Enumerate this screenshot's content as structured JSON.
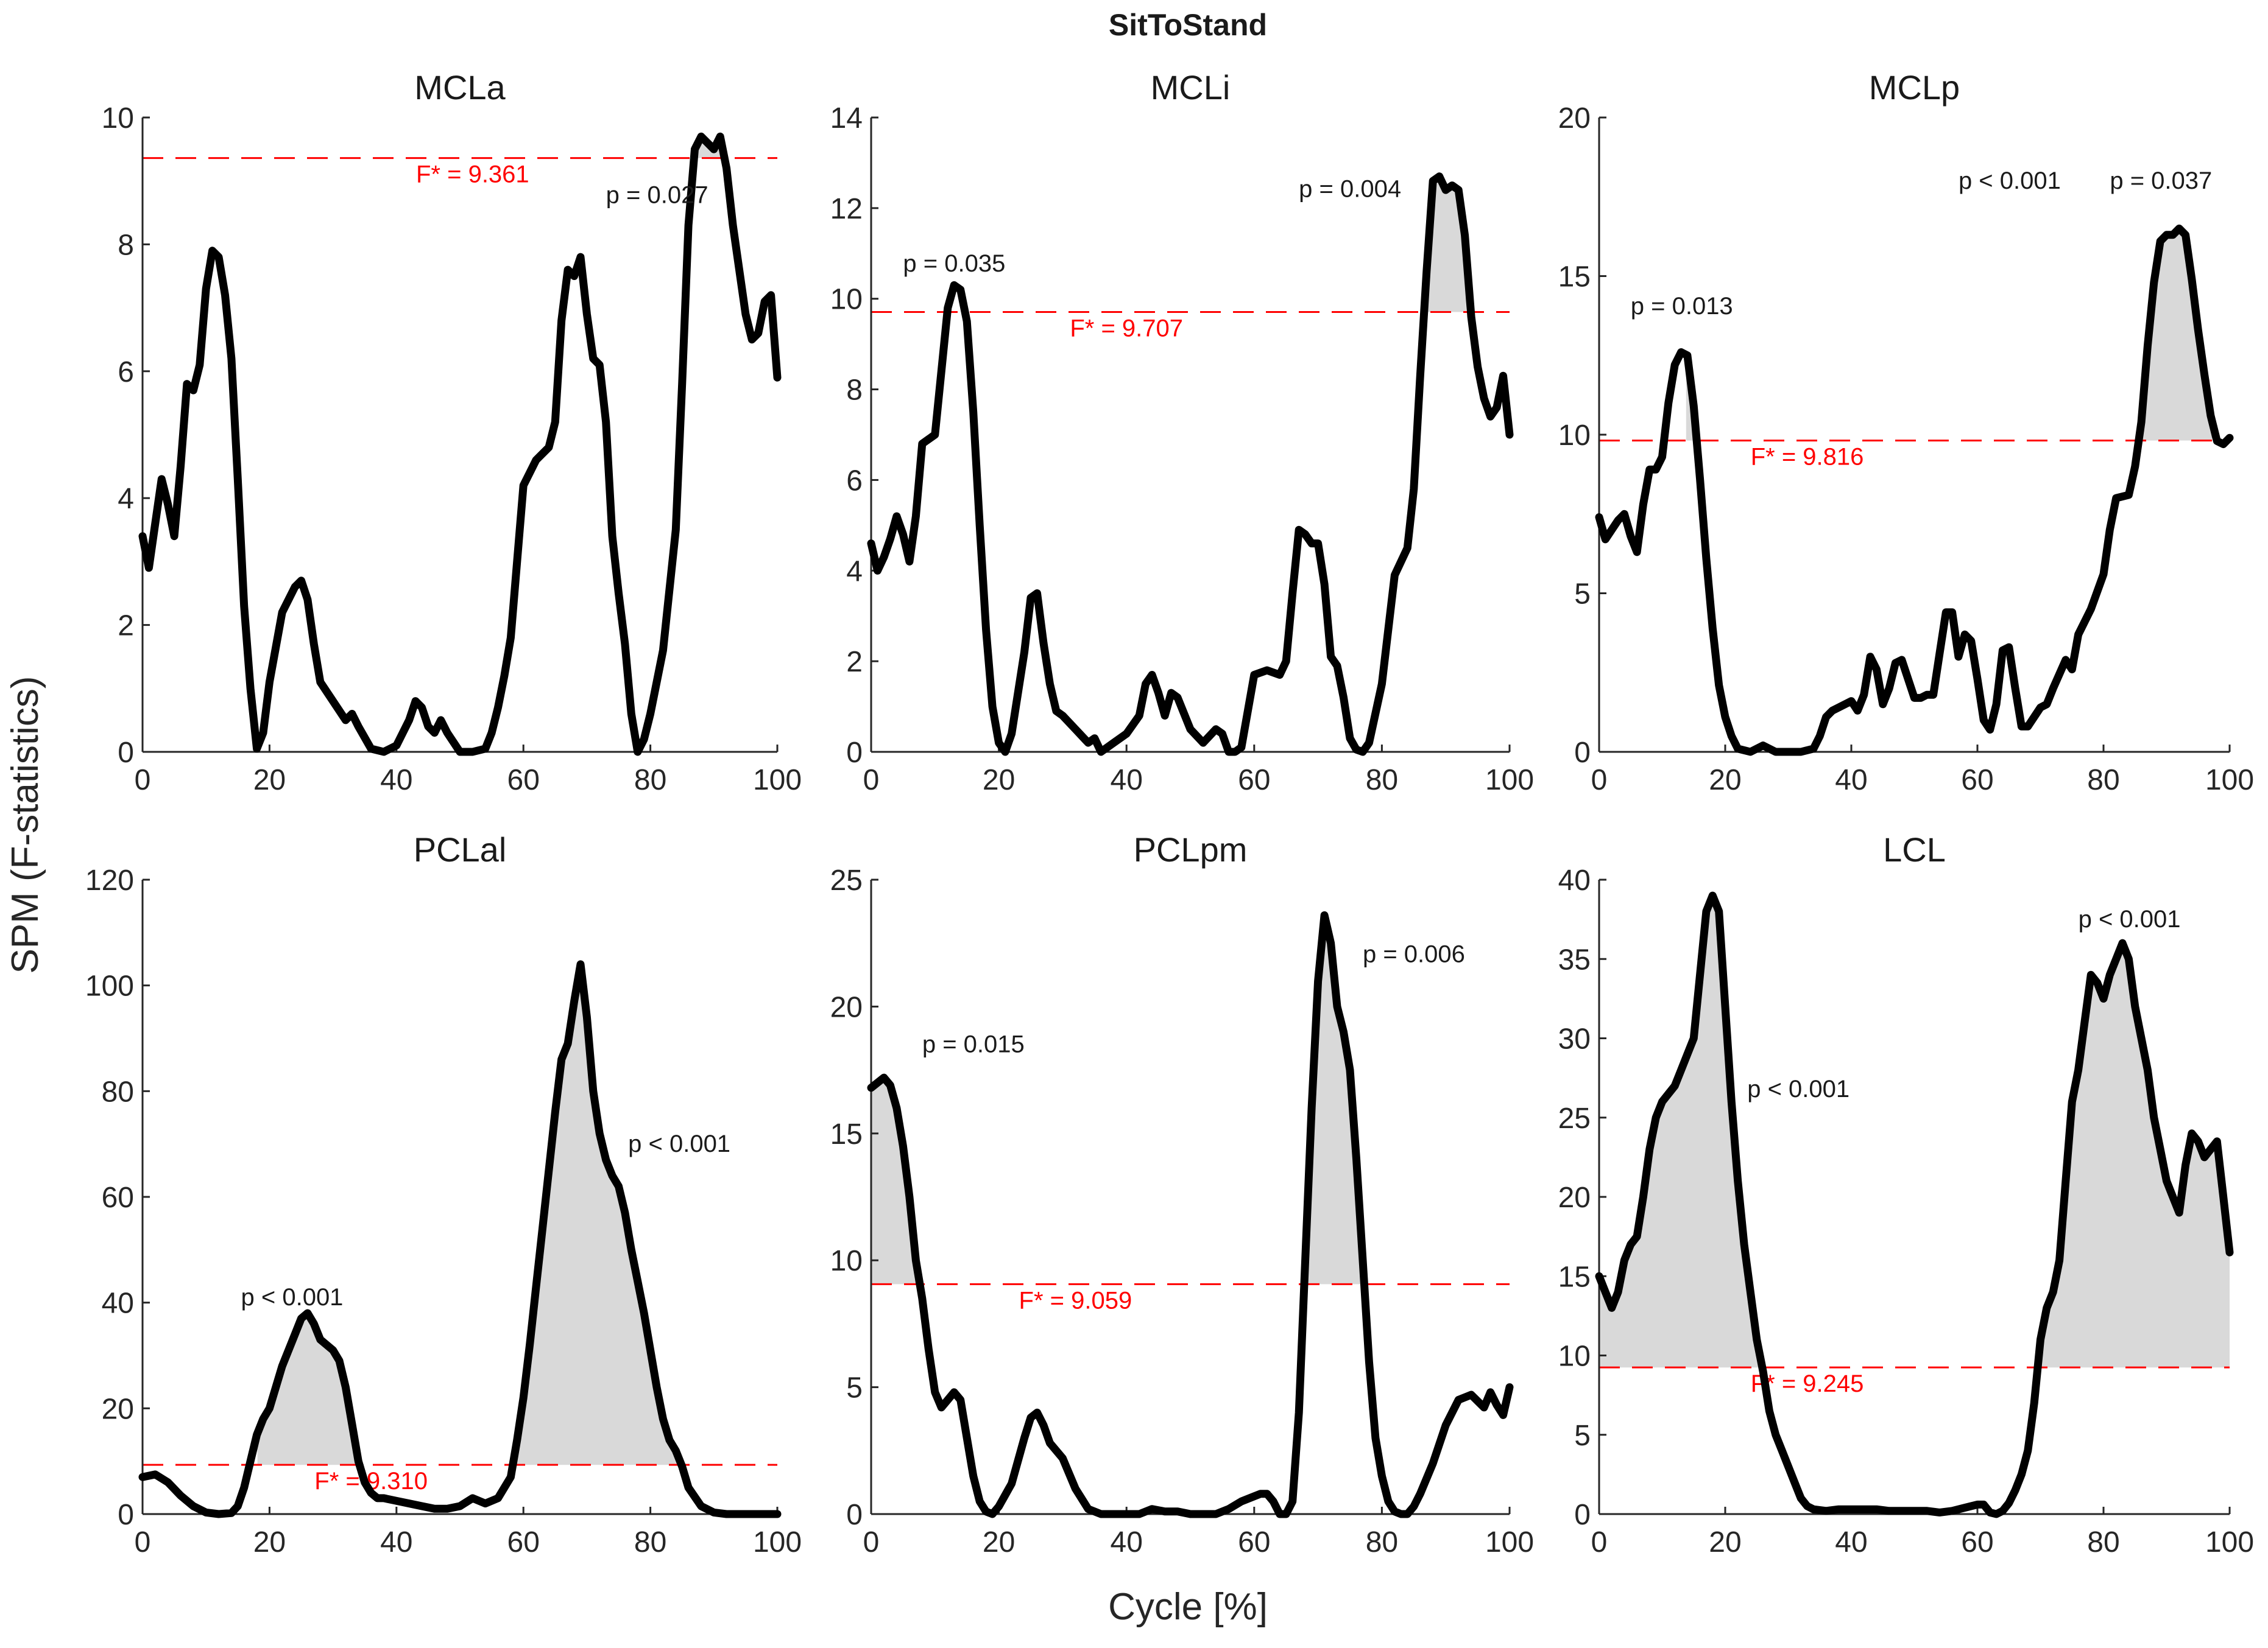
{
  "figure": {
    "title": "SitToStand",
    "ylabel": "SPM (F-statistics)",
    "xlabel": "Cycle [%]"
  },
  "colors": {
    "curve": "#000000",
    "threshold": "#ff0000",
    "cluster_fill": "#d9d9d9",
    "axis": "#262626"
  },
  "chart_data": [
    {
      "type": "line",
      "title": "MCLa",
      "xlim": [
        0,
        100
      ],
      "ylim": [
        0,
        10
      ],
      "xticks": [
        0,
        20,
        40,
        60,
        80,
        100
      ],
      "yticks": [
        0,
        2,
        4,
        6,
        8,
        10
      ],
      "threshold": 9.361,
      "threshold_label": "F* = 9.361",
      "threshold_label_x": 52,
      "x": [
        0,
        1,
        2,
        3,
        4,
        5,
        6,
        7,
        8,
        9,
        10,
        11,
        12,
        13,
        14,
        15,
        16,
        17,
        18,
        19,
        20,
        22,
        24,
        25,
        26,
        27,
        28,
        30,
        32,
        33,
        34,
        36,
        38,
        40,
        42,
        43,
        44,
        45,
        46,
        47,
        48,
        50,
        52,
        54,
        55,
        56,
        57,
        58,
        59,
        60,
        62,
        64,
        65,
        66,
        67,
        68,
        69,
        70,
        71,
        72,
        73,
        74,
        75,
        76,
        77,
        78,
        79,
        80,
        82,
        84,
        85,
        86,
        87,
        88,
        89,
        90,
        91,
        92,
        93,
        94,
        95,
        96,
        97,
        98,
        99,
        100
      ],
      "y": [
        3.4,
        2.9,
        3.6,
        4.3,
        3.9,
        3.4,
        4.5,
        5.8,
        5.7,
        6.1,
        7.3,
        7.9,
        7.8,
        7.2,
        6.2,
        4.3,
        2.3,
        1.0,
        0.05,
        0.3,
        1.1,
        2.2,
        2.6,
        2.7,
        2.4,
        1.7,
        1.1,
        0.8,
        0.5,
        0.6,
        0.4,
        0.05,
        0.0,
        0.1,
        0.5,
        0.8,
        0.7,
        0.4,
        0.3,
        0.5,
        0.3,
        0.0,
        0.0,
        0.05,
        0.3,
        0.7,
        1.2,
        1.8,
        3.0,
        4.2,
        4.6,
        4.8,
        5.2,
        6.8,
        7.6,
        7.5,
        7.8,
        6.9,
        6.2,
        6.1,
        5.2,
        3.4,
        2.5,
        1.7,
        0.6,
        0.0,
        0.2,
        0.6,
        1.6,
        3.5,
        5.8,
        8.3,
        9.5,
        9.7,
        9.6,
        9.5,
        9.7,
        9.2,
        8.3,
        7.6,
        6.9,
        6.5,
        6.6,
        7.1,
        7.2,
        5.9
      ],
      "clusters": [
        [
          86.5,
          91.5
        ]
      ],
      "p_labels": [
        {
          "text": "p = 0.027",
          "x": 73,
          "y": 8.65
        }
      ]
    },
    {
      "type": "line",
      "title": "MCLi",
      "xlim": [
        0,
        100
      ],
      "ylim": [
        0,
        14
      ],
      "xticks": [
        0,
        20,
        40,
        60,
        80,
        100
      ],
      "yticks": [
        0,
        2,
        4,
        6,
        8,
        10,
        12,
        14
      ],
      "threshold": 9.707,
      "threshold_label": "F* = 9.707",
      "threshold_label_x": 40,
      "x": [
        0,
        1,
        2,
        3,
        4,
        5,
        6,
        7,
        8,
        9,
        10,
        11,
        12,
        13,
        14,
        15,
        16,
        17,
        18,
        19,
        20,
        21,
        22,
        24,
        25,
        26,
        27,
        28,
        29,
        30,
        32,
        34,
        35,
        36,
        38,
        40,
        42,
        43,
        44,
        45,
        46,
        47,
        48,
        50,
        52,
        54,
        55,
        56,
        57,
        58,
        60,
        62,
        64,
        65,
        66,
        67,
        68,
        69,
        70,
        71,
        72,
        73,
        74,
        75,
        76,
        77,
        78,
        80,
        82,
        84,
        85,
        86,
        87,
        88,
        89,
        90,
        91,
        92,
        93,
        94,
        95,
        96,
        97,
        98,
        99,
        100
      ],
      "y": [
        4.6,
        4.0,
        4.3,
        4.7,
        5.2,
        4.8,
        4.2,
        5.2,
        6.8,
        6.9,
        7.0,
        8.4,
        9.8,
        10.3,
        10.2,
        9.5,
        7.5,
        5.0,
        2.7,
        1.0,
        0.2,
        0.0,
        0.4,
        2.2,
        3.4,
        3.5,
        2.4,
        1.5,
        0.9,
        0.8,
        0.5,
        0.2,
        0.3,
        0.0,
        0.2,
        0.4,
        0.8,
        1.5,
        1.7,
        1.3,
        0.8,
        1.3,
        1.2,
        0.5,
        0.2,
        0.5,
        0.4,
        0.0,
        0.0,
        0.1,
        1.7,
        1.8,
        1.7,
        2.0,
        3.5,
        4.9,
        4.8,
        4.6,
        4.6,
        3.7,
        2.1,
        1.9,
        1.2,
        0.3,
        0.05,
        0.0,
        0.2,
        1.5,
        3.9,
        4.5,
        5.8,
        8.3,
        10.6,
        12.6,
        12.7,
        12.4,
        12.5,
        12.4,
        11.4,
        9.6,
        8.5,
        7.8,
        7.4,
        7.6,
        8.3,
        7.0
      ],
      "clusters": [
        [
          87.2,
          93.2
        ]
      ],
      "p_labels": [
        {
          "text": "p = 0.035",
          "x": 5,
          "y": 10.6
        },
        {
          "text": "p = 0.004",
          "x": 67,
          "y": 12.25
        }
      ]
    },
    {
      "type": "line",
      "title": "MCLp",
      "xlim": [
        0,
        100
      ],
      "ylim": [
        0,
        20
      ],
      "xticks": [
        0,
        20,
        40,
        60,
        80,
        100
      ],
      "yticks": [
        0,
        5,
        10,
        15,
        20
      ],
      "threshold": 9.816,
      "threshold_label": "F* = 9.816",
      "threshold_label_x": 33,
      "x": [
        0,
        1,
        2,
        3,
        4,
        5,
        6,
        7,
        8,
        9,
        10,
        11,
        12,
        13,
        14,
        15,
        16,
        17,
        18,
        19,
        20,
        21,
        22,
        24,
        26,
        28,
        30,
        32,
        34,
        35,
        36,
        37,
        38,
        40,
        41,
        42,
        43,
        44,
        45,
        46,
        47,
        48,
        50,
        51,
        52,
        53,
        54,
        55,
        56,
        57,
        58,
        59,
        60,
        61,
        62,
        63,
        64,
        65,
        66,
        67,
        68,
        70,
        71,
        72,
        74,
        75,
        76,
        78,
        80,
        81,
        82,
        84,
        85,
        86,
        87,
        88,
        89,
        90,
        91,
        92,
        93,
        94,
        95,
        96,
        97,
        98,
        99,
        100
      ],
      "y": [
        7.4,
        6.7,
        7.0,
        7.3,
        7.5,
        6.8,
        6.3,
        7.8,
        8.9,
        8.9,
        9.3,
        11.0,
        12.2,
        12.6,
        12.5,
        10.9,
        8.6,
        6.1,
        3.9,
        2.1,
        1.1,
        0.5,
        0.1,
        0.0,
        0.2,
        0.0,
        0.0,
        0.0,
        0.1,
        0.5,
        1.1,
        1.3,
        1.4,
        1.6,
        1.3,
        1.8,
        3.0,
        2.6,
        1.5,
        2.0,
        2.8,
        2.9,
        1.7,
        1.7,
        1.8,
        1.8,
        3.1,
        4.4,
        4.4,
        3.0,
        3.7,
        3.5,
        2.3,
        1.0,
        0.7,
        1.5,
        3.2,
        3.3,
        2.0,
        0.8,
        0.8,
        1.4,
        1.5,
        2.0,
        2.9,
        2.6,
        3.7,
        4.5,
        5.6,
        7.0,
        8.0,
        8.1,
        9.0,
        10.4,
        12.8,
        14.8,
        16.1,
        16.3,
        16.3,
        16.5,
        16.3,
        14.9,
        13.3,
        11.9,
        10.6,
        9.8,
        9.7,
        9.9
      ],
      "clusters": [
        [
          13.8,
          17.4
        ],
        [
          84.8,
          97.2
        ]
      ],
      "p_labels": [
        {
          "text": "p = 0.013",
          "x": 5,
          "y": 13.8
        },
        {
          "text": "p < 0.001",
          "x": 57,
          "y": 17.75
        },
        {
          "text": "p = 0.037",
          "x": 81,
          "y": 17.75
        }
      ]
    },
    {
      "type": "line",
      "title": "PCLal",
      "xlim": [
        0,
        100
      ],
      "ylim": [
        0,
        120
      ],
      "xticks": [
        0,
        20,
        40,
        60,
        80,
        100
      ],
      "yticks": [
        0,
        20,
        40,
        60,
        80,
        100,
        120
      ],
      "threshold": 9.31,
      "threshold_label": "F* = 9.310",
      "threshold_label_x": 36,
      "x": [
        0,
        2,
        4,
        6,
        8,
        10,
        12,
        14,
        15,
        16,
        17,
        18,
        19,
        20,
        21,
        22,
        24,
        25,
        26,
        27,
        28,
        30,
        31,
        32,
        33,
        34,
        35,
        36,
        37,
        38,
        40,
        42,
        44,
        46,
        48,
        50,
        52,
        54,
        56,
        58,
        59,
        60,
        61,
        62,
        63,
        64,
        65,
        66,
        67,
        68,
        69,
        70,
        71,
        72,
        73,
        74,
        75,
        76,
        77,
        78,
        79,
        80,
        81,
        82,
        83,
        84,
        85,
        86,
        88,
        90,
        92,
        95,
        100
      ],
      "y": [
        7.0,
        7.5,
        6.0,
        3.5,
        1.5,
        0.3,
        0.0,
        0.2,
        1.5,
        5.0,
        10.0,
        15.0,
        18.0,
        20.0,
        24.0,
        28.0,
        34.0,
        37.0,
        38.0,
        36.0,
        33.0,
        31.0,
        29.0,
        24.0,
        17.0,
        10.0,
        6.0,
        4.0,
        3.0,
        3.0,
        2.5,
        2.0,
        1.5,
        1.0,
        1.0,
        1.5,
        3.0,
        2.0,
        3.0,
        7.0,
        14.0,
        22.0,
        32.0,
        43.0,
        54.0,
        65.0,
        76.0,
        86.0,
        89.0,
        97.0,
        104.0,
        94.0,
        80.0,
        72.0,
        67.0,
        64.0,
        62.0,
        57.0,
        50.0,
        44.0,
        38.0,
        31.0,
        24.0,
        18.0,
        14.0,
        12.0,
        9.0,
        5.0,
        1.5,
        0.3,
        0.0,
        0.0,
        0.0
      ],
      "clusters": [
        [
          18.1,
          35.5
        ],
        [
          58.2,
          84.8
        ]
      ],
      "p_labels": [
        {
          "text": "p < 0.001",
          "x": 15.5,
          "y": 39.5
        },
        {
          "text": "p < 0.001",
          "x": 76.5,
          "y": 68.5
        }
      ]
    },
    {
      "type": "line",
      "title": "PCLpm",
      "xlim": [
        0,
        100
      ],
      "ylim": [
        0,
        25
      ],
      "xticks": [
        0,
        20,
        40,
        60,
        80,
        100
      ],
      "yticks": [
        0,
        5,
        10,
        15,
        20,
        25
      ],
      "threshold": 9.059,
      "threshold_label": "F* = 9.059",
      "threshold_label_x": 32,
      "x": [
        0,
        1,
        2,
        3,
        4,
        5,
        6,
        7,
        8,
        9,
        10,
        11,
        12,
        13,
        14,
        15,
        16,
        17,
        18,
        19,
        20,
        22,
        24,
        25,
        26,
        27,
        28,
        30,
        32,
        34,
        36,
        38,
        40,
        42,
        44,
        46,
        48,
        50,
        52,
        54,
        56,
        58,
        60,
        61,
        62,
        63,
        64,
        65,
        66,
        67,
        68,
        69,
        70,
        71,
        72,
        73,
        74,
        75,
        76,
        77,
        78,
        79,
        80,
        81,
        82,
        83,
        84,
        85,
        86,
        88,
        90,
        92,
        94,
        96,
        97,
        98,
        99,
        100
      ],
      "y": [
        16.8,
        17.0,
        17.2,
        16.9,
        16.0,
        14.5,
        12.5,
        10.0,
        8.5,
        6.5,
        4.8,
        4.2,
        4.5,
        4.8,
        4.5,
        3.0,
        1.5,
        0.5,
        0.1,
        0.0,
        0.3,
        1.2,
        3.0,
        3.8,
        4.0,
        3.5,
        2.8,
        2.2,
        1.0,
        0.2,
        0.0,
        0.0,
        0.0,
        0.0,
        0.2,
        0.1,
        0.1,
        0.0,
        0.0,
        0.0,
        0.2,
        0.5,
        0.7,
        0.8,
        0.8,
        0.5,
        0.0,
        0.0,
        0.5,
        4.0,
        10.0,
        16.0,
        21.0,
        23.6,
        22.5,
        20.0,
        19.0,
        17.5,
        14.0,
        10.0,
        6.0,
        3.0,
        1.5,
        0.5,
        0.1,
        0.0,
        0.0,
        0.3,
        0.8,
        2.0,
        3.5,
        4.5,
        4.7,
        4.2,
        4.8,
        4.3,
        3.9,
        5.0
      ],
      "clusters": [
        [
          0,
          7.7
        ],
        [
          67.8,
          77.8
        ]
      ],
      "p_labels": [
        {
          "text": "p = 0.015",
          "x": 8,
          "y": 18.2
        },
        {
          "text": "p = 0.006",
          "x": 77,
          "y": 21.75
        }
      ]
    },
    {
      "type": "line",
      "title": "LCL",
      "xlim": [
        0,
        100
      ],
      "ylim": [
        0,
        40
      ],
      "xticks": [
        0,
        20,
        40,
        60,
        80,
        100
      ],
      "yticks": [
        0,
        5,
        10,
        15,
        20,
        25,
        30,
        35,
        40
      ],
      "threshold": 9.245,
      "threshold_label": "F* = 9.245",
      "threshold_label_x": 33,
      "x": [
        0,
        1,
        2,
        3,
        4,
        5,
        6,
        7,
        8,
        9,
        10,
        11,
        12,
        13,
        14,
        15,
        16,
        17,
        18,
        19,
        20,
        21,
        22,
        23,
        24,
        25,
        26,
        27,
        28,
        29,
        30,
        31,
        32,
        33,
        34,
        36,
        38,
        40,
        42,
        44,
        46,
        48,
        50,
        52,
        54,
        56,
        58,
        60,
        61,
        62,
        63,
        64,
        65,
        66,
        67,
        68,
        69,
        70,
        71,
        72,
        73,
        74,
        75,
        76,
        77,
        78,
        79,
        80,
        81,
        82,
        83,
        84,
        85,
        86,
        87,
        88,
        89,
        90,
        91,
        92,
        93,
        94,
        95,
        96,
        97,
        98,
        99,
        100
      ],
      "y": [
        15.0,
        14.0,
        13.0,
        14.0,
        16.0,
        17.0,
        17.5,
        20.0,
        23.0,
        25.0,
        26.0,
        26.5,
        27.0,
        28.0,
        29.0,
        30.0,
        34.0,
        38.0,
        39.0,
        38.0,
        32.0,
        26.0,
        21.0,
        17.0,
        14.0,
        11.0,
        9.0,
        6.5,
        5.0,
        4.0,
        3.0,
        2.0,
        1.0,
        0.5,
        0.3,
        0.2,
        0.3,
        0.3,
        0.3,
        0.3,
        0.2,
        0.2,
        0.2,
        0.2,
        0.1,
        0.2,
        0.4,
        0.6,
        0.6,
        0.1,
        0.0,
        0.2,
        0.7,
        1.5,
        2.5,
        4.0,
        7.0,
        11.0,
        13.0,
        14.0,
        16.0,
        21.0,
        26.0,
        28.0,
        31.0,
        34.0,
        33.5,
        32.5,
        34.0,
        35.0,
        36.0,
        35.0,
        32.0,
        30.0,
        28.0,
        25.0,
        23.0,
        21.0,
        20.0,
        19.0,
        22.0,
        24.0,
        23.5,
        22.5,
        23.0,
        23.5,
        20.0,
        16.5
      ],
      "clusters": [
        [
          0,
          26.8
        ],
        [
          69.6,
          100
        ]
      ],
      "p_labels": [
        {
          "text": "p < 0.001",
          "x": 23.5,
          "y": 26.3
        },
        {
          "text": "p < 0.001",
          "x": 76,
          "y": 37.0
        }
      ]
    }
  ]
}
